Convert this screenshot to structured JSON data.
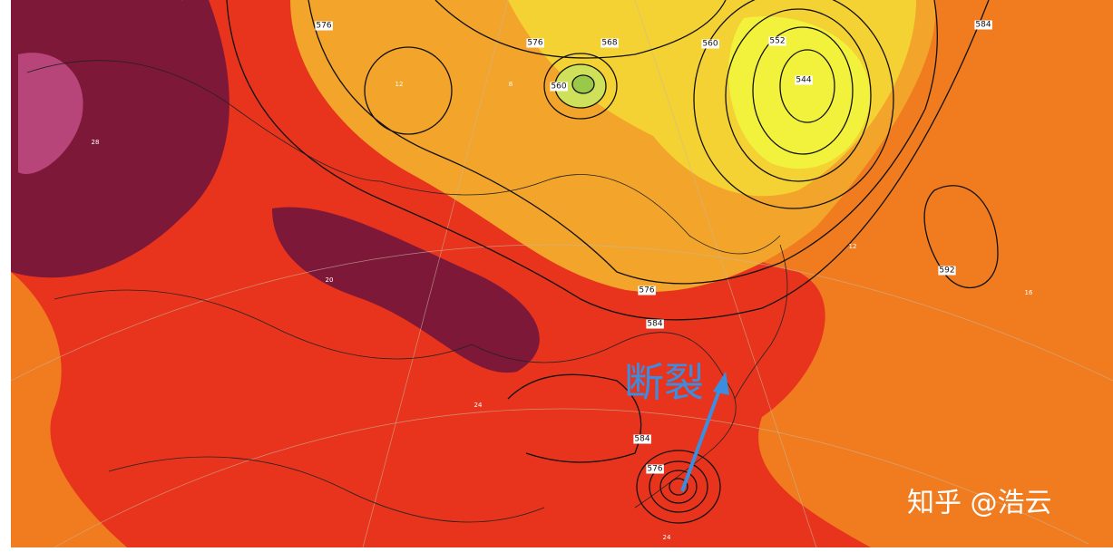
{
  "annotation": "断裂",
  "watermark": "知乎 @浩云",
  "contour_labels": [
    "576",
    "576",
    "568",
    "560",
    "560",
    "552",
    "544",
    "584",
    "576",
    "584",
    "592",
    "576",
    "584"
  ],
  "temperature_labels": [
    "12",
    "8",
    "28",
    "20",
    "24",
    "16",
    "12",
    "24"
  ]
}
